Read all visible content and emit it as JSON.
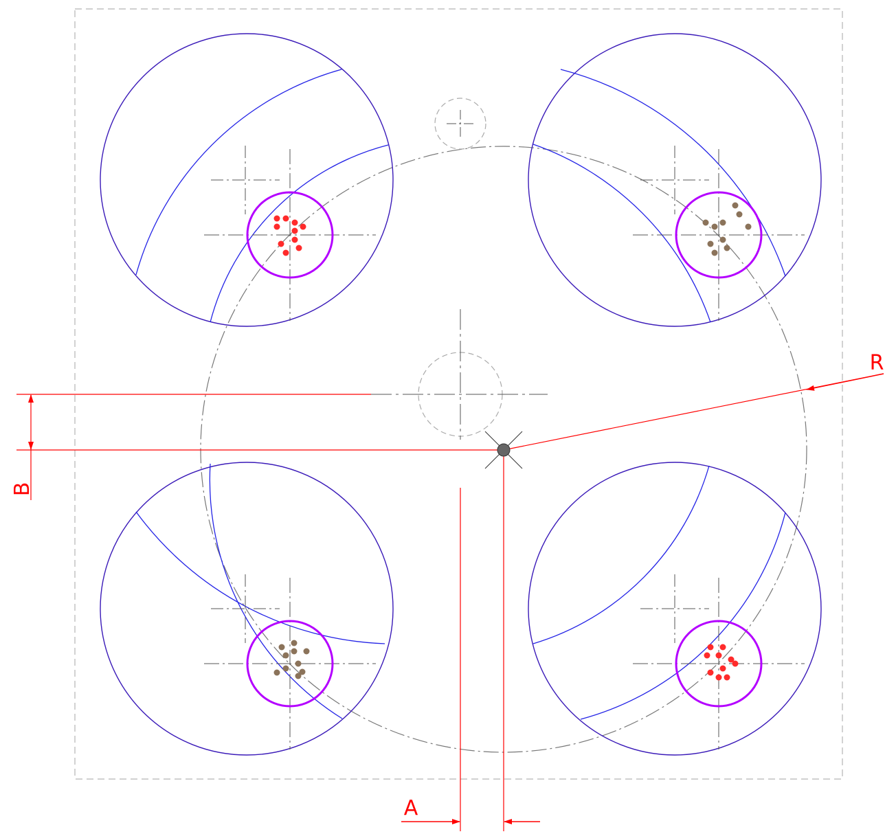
{
  "dimension_labels": {
    "a": "A",
    "b": "B",
    "r": "R"
  },
  "colors": {
    "outer_circle": "#3a1ab8",
    "arc": "#2323e6",
    "target_ring": "#b400ff",
    "dimension": "#ff0000",
    "hit_red": "#ff2b2b",
    "hit_brown": "#8b735a",
    "centerline": "#555555",
    "border": "#b5b5b5"
  },
  "targets": [
    {
      "name": "top-left",
      "hits": "red"
    },
    {
      "name": "top-right",
      "hits": "brown"
    },
    {
      "name": "bottom-left",
      "hits": "brown"
    },
    {
      "name": "bottom-right",
      "hits": "red"
    }
  ]
}
